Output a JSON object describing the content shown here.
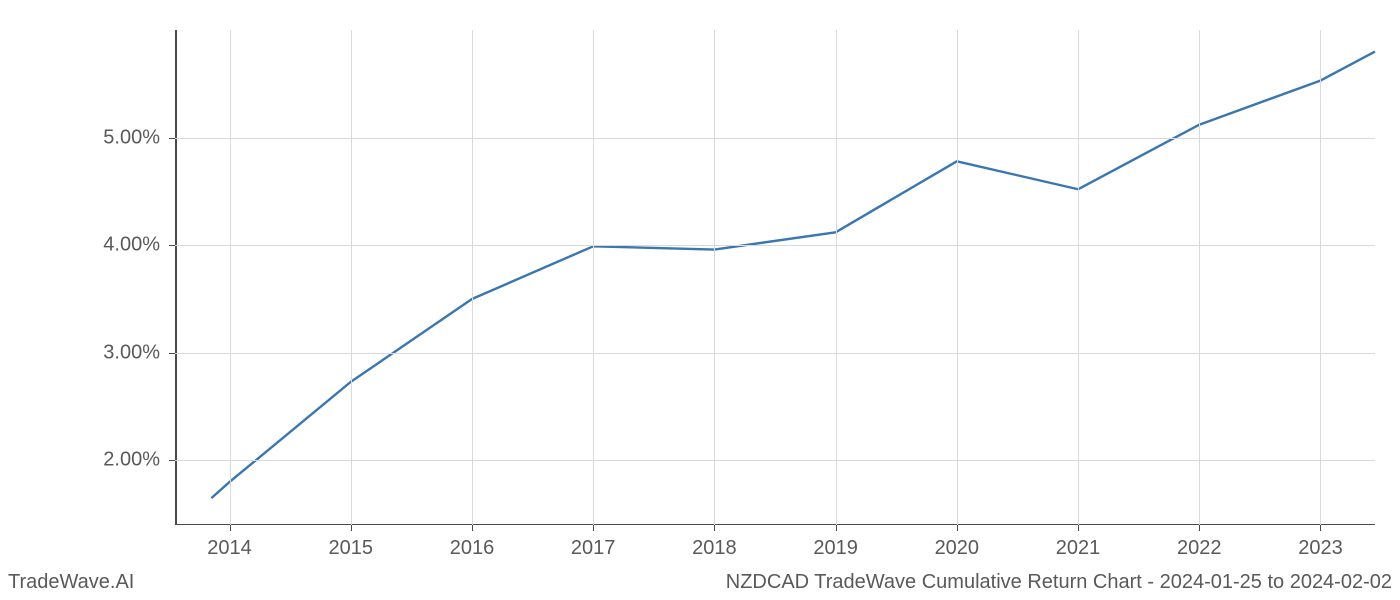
{
  "chart": {
    "type": "line",
    "line_color": "#3a76af",
    "line_width": 2.4,
    "background_color": "#ffffff",
    "grid_color": "#d9d9d9",
    "spine_color": "#4a4a4a",
    "tick_label_color": "#595959",
    "tick_label_fontsize": 20,
    "x_values": [
      2013.85,
      2014,
      2015,
      2016,
      2017,
      2018,
      2019,
      2020,
      2021,
      2022,
      2023,
      2023.45
    ],
    "y_values": [
      1.65,
      1.8,
      2.73,
      3.5,
      3.99,
      3.96,
      4.12,
      4.78,
      4.52,
      5.12,
      5.53,
      5.8
    ],
    "x_ticks": [
      2014,
      2015,
      2016,
      2017,
      2018,
      2019,
      2020,
      2021,
      2022,
      2023
    ],
    "x_tick_labels": [
      "2014",
      "2015",
      "2016",
      "2017",
      "2018",
      "2019",
      "2020",
      "2021",
      "2022",
      "2023"
    ],
    "y_ticks": [
      2.0,
      3.0,
      4.0,
      5.0
    ],
    "y_tick_labels": [
      "2.00%",
      "3.00%",
      "4.00%",
      "5.00%"
    ],
    "xlim": [
      2013.55,
      2023.45
    ],
    "ylim": [
      1.4,
      6.0
    ]
  },
  "footer": {
    "left": "TradeWave.AI",
    "right": "NZDCAD TradeWave Cumulative Return Chart - 2024-01-25 to 2024-02-02"
  }
}
